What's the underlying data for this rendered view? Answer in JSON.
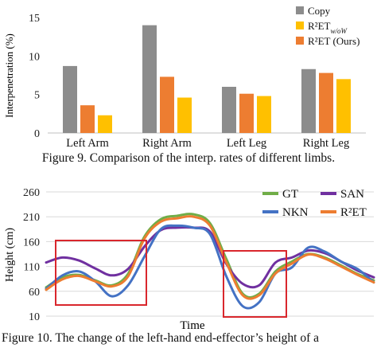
{
  "chart_data": [
    {
      "type": "bar",
      "ylabel": "Interpenetration (%)",
      "ylim": [
        0,
        15
      ],
      "yticks": [
        0,
        5,
        10,
        15
      ],
      "categories": [
        "Left Arm",
        "Right Arm",
        "Left Leg",
        "Right Leg"
      ],
      "series": [
        {
          "name": "Copy",
          "color": "#8c8c8c",
          "values": [
            8.7,
            14.0,
            6.0,
            8.3
          ]
        },
        {
          "name": "R²ET",
          "name_sub": "w/oW",
          "color": "#ffc000",
          "values": [
            2.3,
            4.6,
            4.8,
            7.0
          ]
        },
        {
          "name": "R²ET (Ours)",
          "color": "#ed7d31",
          "values": [
            3.6,
            7.3,
            5.1,
            7.8
          ]
        }
      ],
      "legend": "top-right",
      "grid": false
    },
    {
      "type": "line",
      "xlabel": "Time",
      "ylabel": "Height (cm)",
      "ylim": [
        10,
        260
      ],
      "yticks": [
        10,
        60,
        110,
        160,
        210,
        260
      ],
      "x": [
        0,
        5,
        10,
        15,
        20,
        25,
        30,
        35,
        40,
        45,
        50,
        55,
        60,
        65,
        70,
        75,
        80,
        85,
        90,
        95,
        100
      ],
      "series": [
        {
          "name": "GT",
          "color": "#70ad47",
          "values": [
            68,
            88,
            93,
            82,
            72,
            95,
            170,
            205,
            212,
            215,
            197,
            125,
            55,
            55,
            100,
            120,
            135,
            128,
            112,
            95,
            82
          ]
        },
        {
          "name": "SAN",
          "color": "#7030a0",
          "values": [
            118,
            128,
            122,
            106,
            92,
            105,
            150,
            183,
            188,
            188,
            180,
            115,
            75,
            72,
            118,
            128,
            142,
            137,
            120,
            102,
            88
          ]
        },
        {
          "name": "NKN",
          "color": "#4472c4",
          "values": [
            65,
            92,
            100,
            80,
            50,
            72,
            130,
            185,
            192,
            188,
            175,
            90,
            30,
            38,
            96,
            108,
            148,
            140,
            120,
            105,
            78
          ]
        },
        {
          "name": "R²ET",
          "color": "#ed7d31",
          "values": [
            63,
            84,
            91,
            80,
            70,
            90,
            166,
            200,
            207,
            210,
            192,
            118,
            52,
            52,
            96,
            116,
            134,
            126,
            110,
            93,
            78
          ]
        }
      ],
      "legend": "top-right",
      "grid": true
    }
  ],
  "captions": {
    "fig9": "Figure 9. Comparison of the interp. rates of different limbs.",
    "fig10": "Figure 10. The change of the left-hand end-effector’s height of a"
  }
}
